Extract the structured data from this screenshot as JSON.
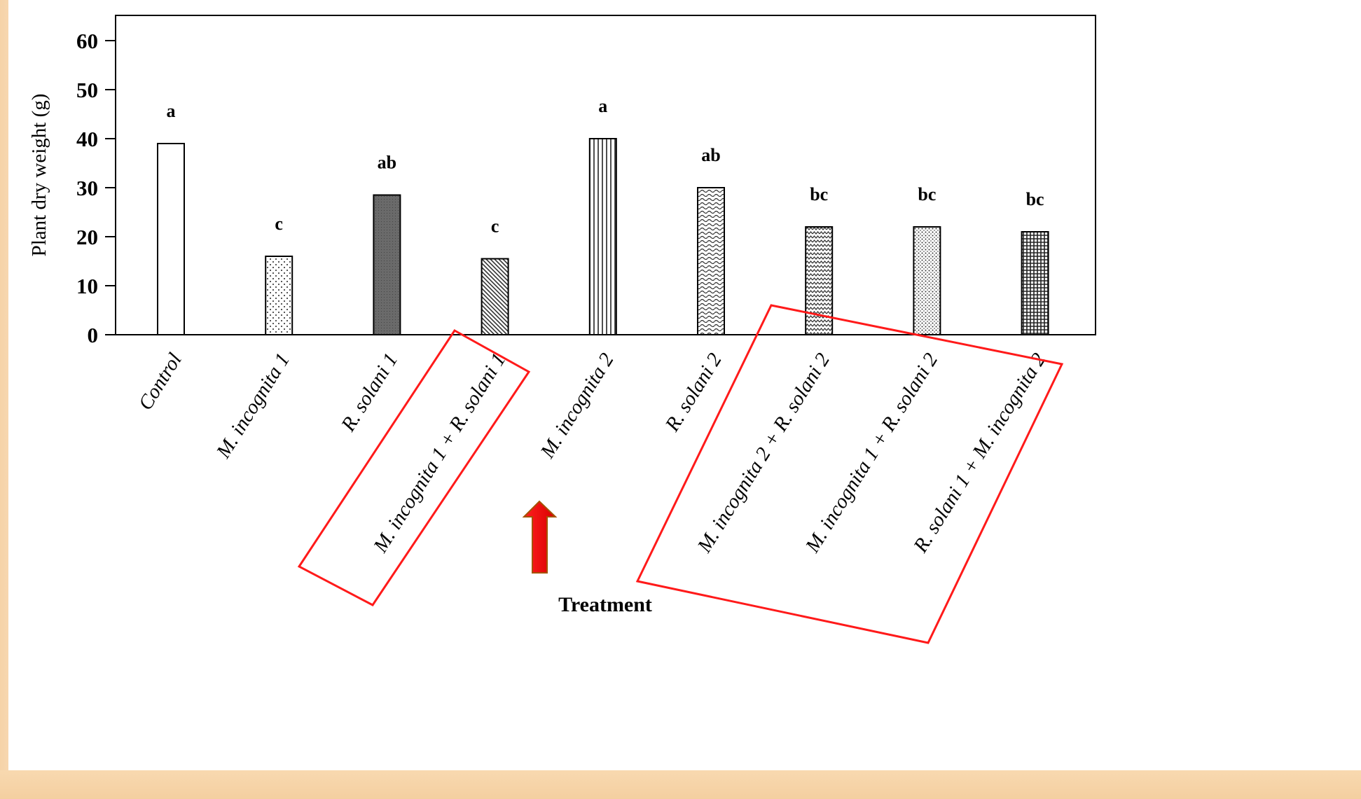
{
  "chart_data": {
    "type": "bar",
    "xlabel": "Treatment",
    "ylabel": "Plant dry weight (g)",
    "ylim": [
      0,
      60
    ],
    "yticks": [
      0,
      10,
      20,
      30,
      40,
      50,
      60
    ],
    "grid": false,
    "categories": [
      "Control",
      "M. incognita 1",
      "R. solani 1",
      "M. incognita 1 + R. solani 1",
      "M. incognita 2",
      "R. solani 2",
      "M. incognita 2 + R. solani 2",
      "M. incognita 1 + R. solani 2",
      "R. solani 1 + M. incognita 2"
    ],
    "values": [
      39,
      16,
      28.5,
      15.5,
      40,
      30,
      22,
      22,
      21
    ],
    "significance_labels": [
      "a",
      "c",
      "ab",
      "c",
      "a",
      "ab",
      "bc",
      "bc",
      "bc"
    ],
    "bar_patterns": [
      "white",
      "dots",
      "dark",
      "diagonal",
      "vertical",
      "waves",
      "zigzag",
      "dense-dots",
      "grid"
    ],
    "annotations": {
      "highlight_boxes": 2,
      "arrow_color": "#ff0000",
      "box_color": "#ff2222"
    }
  }
}
